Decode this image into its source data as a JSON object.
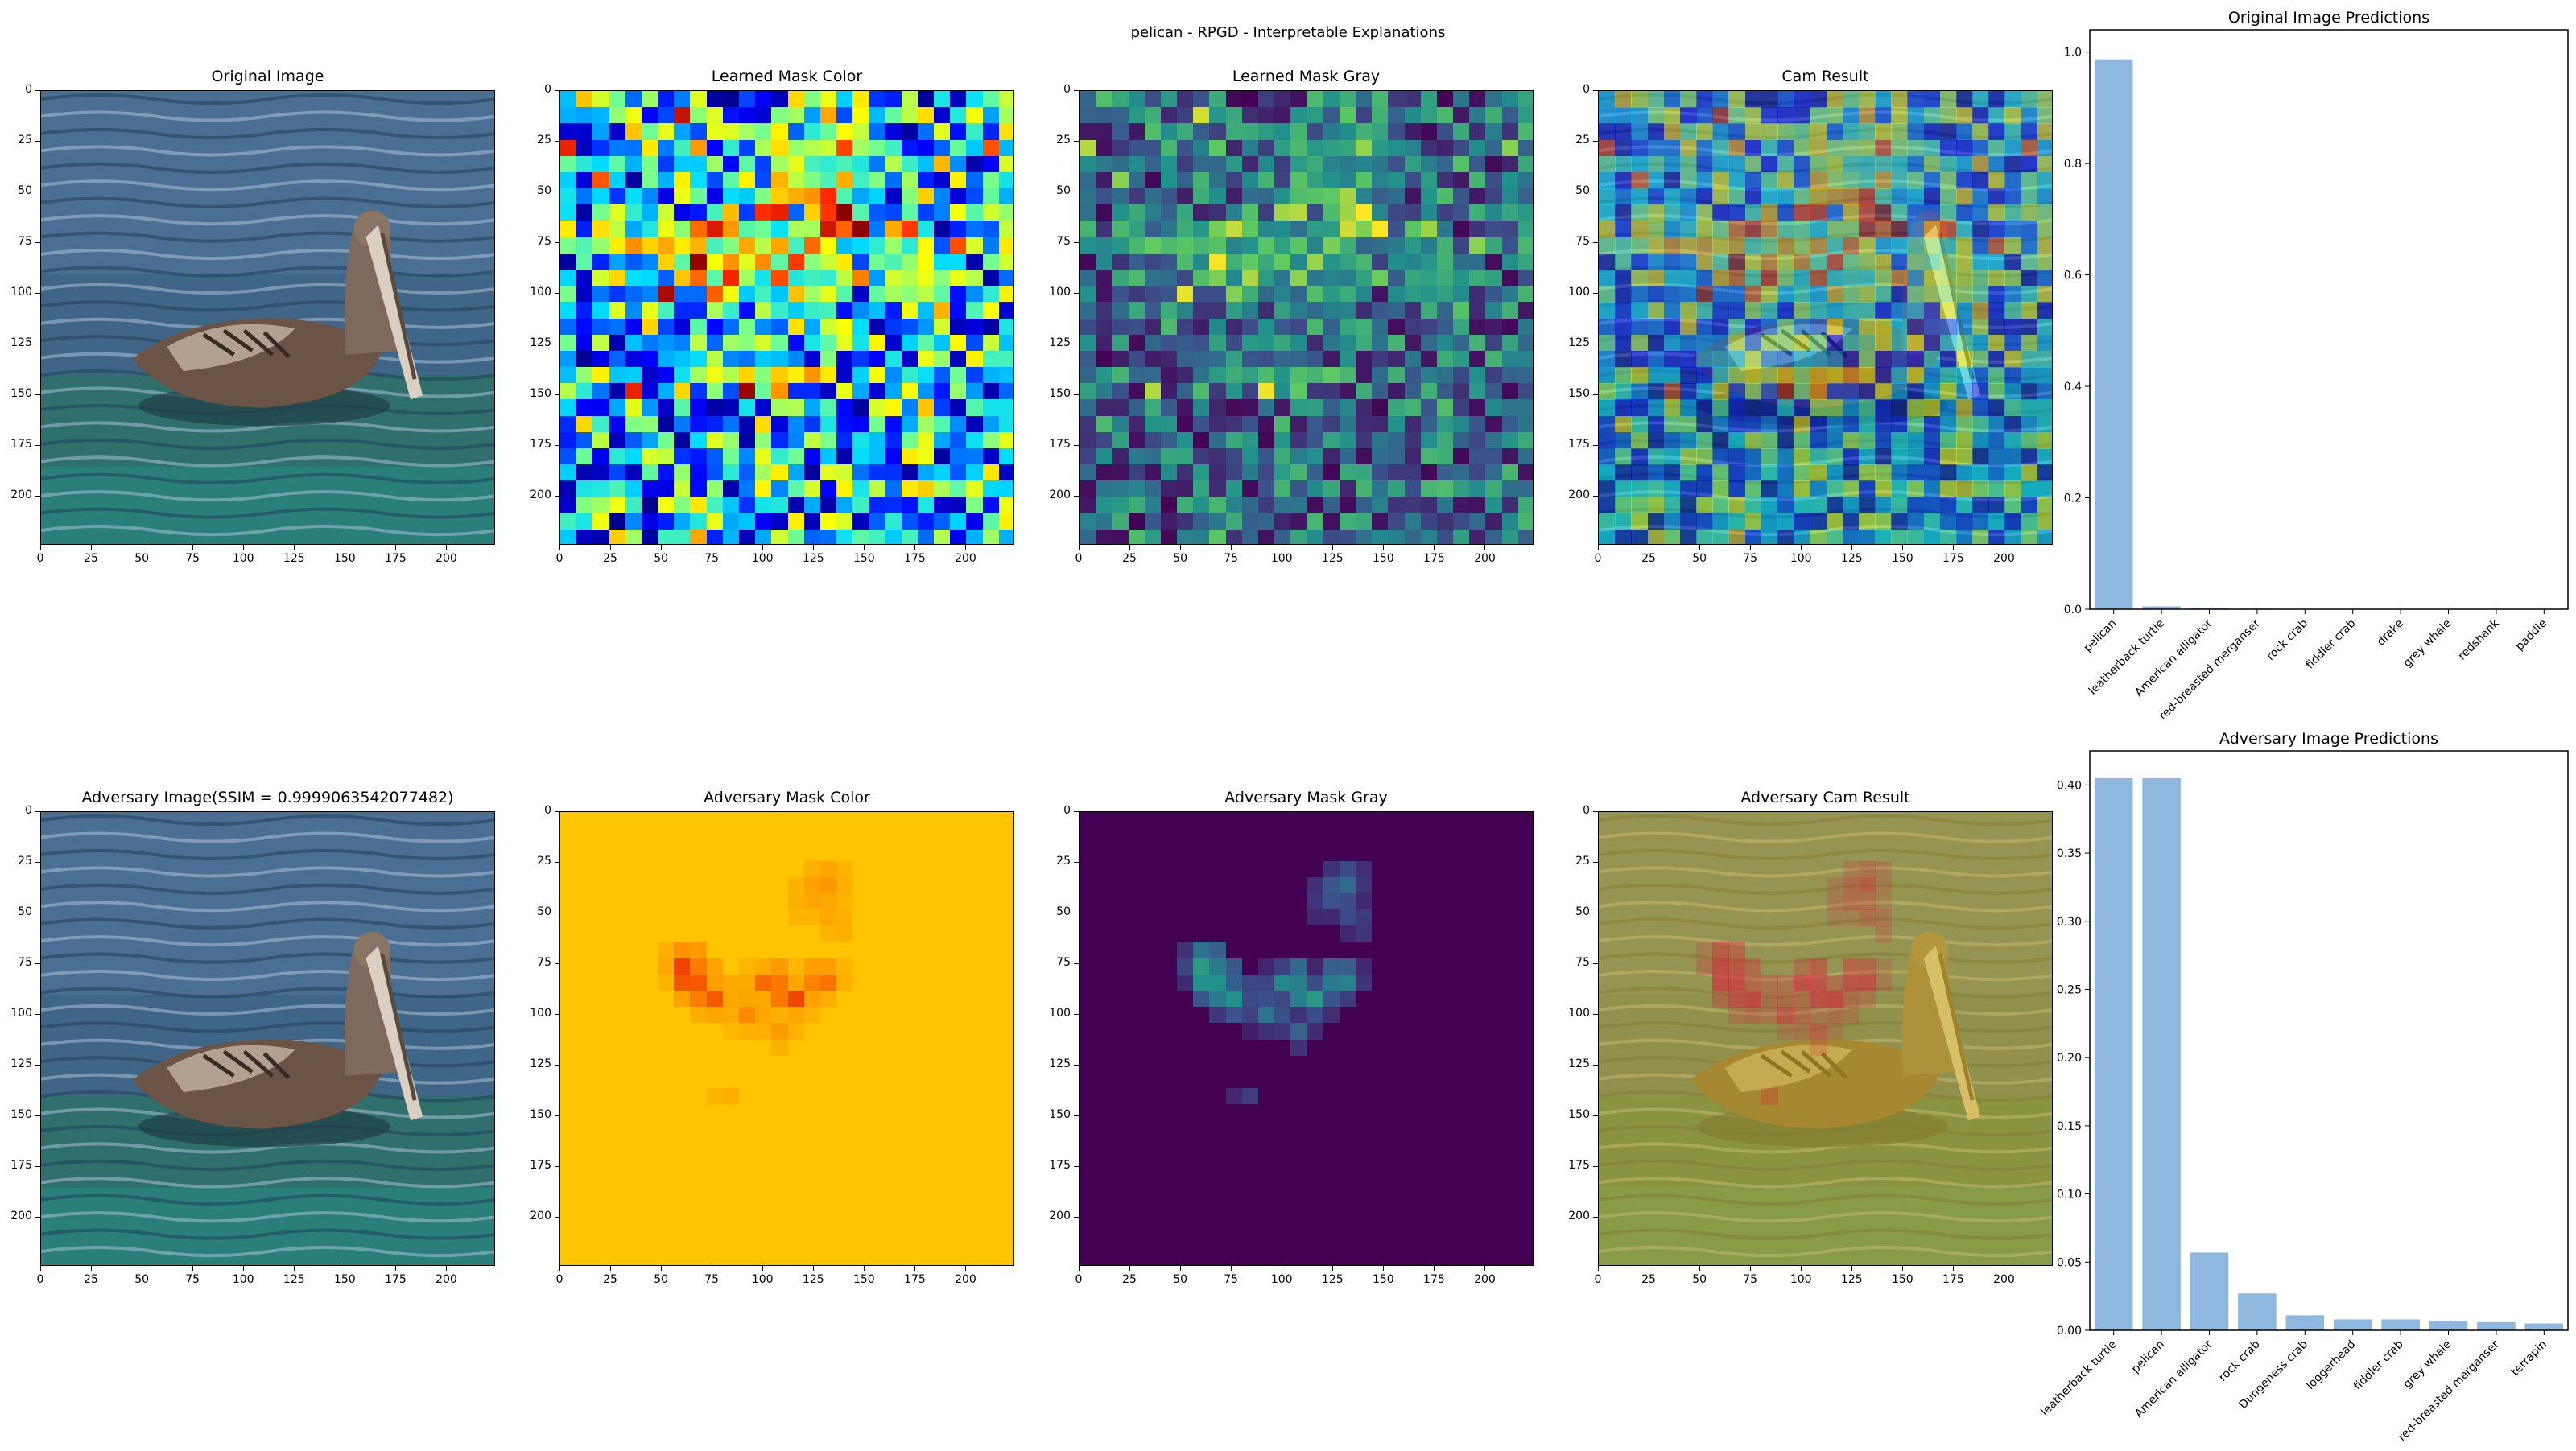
{
  "figure": {
    "suptitle": "pelican - RPGD - Interpretable Explanations"
  },
  "image_panels": [
    {
      "id": "orig-image",
      "title": "Original Image",
      "kind": "photo",
      "row": 0,
      "col": 0
    },
    {
      "id": "learned-mask-color",
      "title": "Learned Mask Color",
      "kind": "jet-mask",
      "row": 0,
      "col": 1
    },
    {
      "id": "learned-mask-gray",
      "title": "Learned Mask Gray",
      "kind": "viridis-mask",
      "row": 0,
      "col": 2
    },
    {
      "id": "cam-result",
      "title": "Cam Result",
      "kind": "jet-overlay",
      "row": 0,
      "col": 3
    },
    {
      "id": "adv-image",
      "title": "Adversary Image(SSIM = 0.9999063542077482)",
      "kind": "photo",
      "row": 1,
      "col": 0
    },
    {
      "id": "adv-mask-color",
      "title": "Adversary Mask Color",
      "kind": "hot-mask",
      "row": 1,
      "col": 1
    },
    {
      "id": "adv-mask-gray",
      "title": "Adversary Mask Gray",
      "kind": "viridis-sparse",
      "row": 1,
      "col": 2
    },
    {
      "id": "adv-cam-result",
      "title": "Adversary Cam Result",
      "kind": "hot-overlay",
      "row": 1,
      "col": 3
    }
  ],
  "image_axis": {
    "x_ticks": [
      "0",
      "25",
      "50",
      "75",
      "100",
      "125",
      "150",
      "175",
      "200"
    ],
    "y_ticks": [
      "0",
      "25",
      "50",
      "75",
      "100",
      "125",
      "150",
      "175",
      "200"
    ],
    "extent": 224
  },
  "chart_data": [
    {
      "type": "bar",
      "title": "Original Image Predictions",
      "categories": [
        "pelican",
        "leatherback turtle",
        "American alligator",
        "red-breasted merganser",
        "rock crab",
        "fiddler crab",
        "drake",
        "grey whale",
        "redshank",
        "paddle"
      ],
      "values": [
        0.987,
        0.005,
        0.002,
        0.001,
        0.0006,
        0.0005,
        0.0004,
        0.0003,
        0.0003,
        0.0002
      ],
      "ylim": [
        0,
        1.04
      ],
      "yticks": [
        "0.0",
        "0.2",
        "0.4",
        "0.6",
        "0.8",
        "1.0"
      ],
      "color": "#8fb8de"
    },
    {
      "type": "bar",
      "title": "Adversary Image Predictions",
      "categories": [
        "leatherback turtle",
        "pelican",
        "American alligator",
        "rock crab",
        "Dungeness crab",
        "loggerhead",
        "fiddler crab",
        "grey whale",
        "red-breasted merganser",
        "terrapin"
      ],
      "values": [
        0.405,
        0.405,
        0.057,
        0.027,
        0.011,
        0.008,
        0.008,
        0.007,
        0.006,
        0.005
      ],
      "ylim": [
        0,
        0.425
      ],
      "yticks": [
        "0.00",
        "0.05",
        "0.10",
        "0.15",
        "0.20",
        "0.25",
        "0.30",
        "0.35",
        "0.40"
      ],
      "color": "#8fb8de"
    }
  ]
}
